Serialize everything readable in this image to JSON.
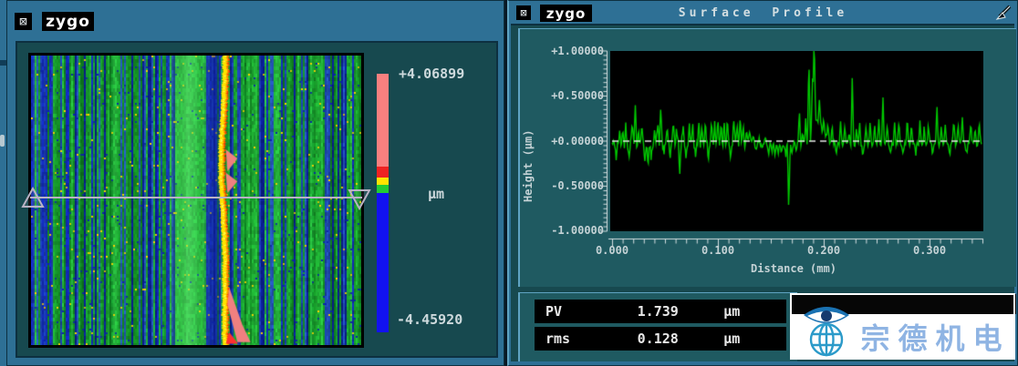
{
  "colors": {
    "titlebar": "#2e7095",
    "client": "#17494f",
    "panel": "#1f5a61",
    "ruler": "#d5dfe1",
    "trace_green": "#00c800",
    "zero_dash": "#e6e6e6",
    "profile_line": "#b9b2c4",
    "black": "#000000"
  },
  "left_window": {
    "close_glyph": "⊠",
    "logo": "zygo",
    "colorbar": {
      "max_label": "+4.06899",
      "min_label": "-4.45920",
      "unit": "μm",
      "segments": [
        {
          "color": "#f8807f",
          "to_pct": 36
        },
        {
          "color": "#ee2222",
          "to_pct": 40
        },
        {
          "color": "#ffe400",
          "to_pct": 43
        },
        {
          "color": "#22cc33",
          "to_pct": 46
        },
        {
          "color": "#1212f0",
          "to_pct": 100
        }
      ]
    },
    "map": {
      "seed": 7,
      "greens": [
        "#17a62b",
        "#23c53a",
        "#0f8f25",
        "#2ed648",
        "#1bb637"
      ],
      "blues": [
        "#1530d8",
        "#1f49c8",
        "#0b23a8",
        "#2a62d4"
      ],
      "ridge_x": 0.582,
      "ridge_colors": {
        "yellow": "#ffe400",
        "orange": "#ff9000",
        "red": "#ff3000"
      },
      "blob_color": "#f08080"
    }
  },
  "right_window": {
    "close_glyph": "⊠",
    "logo": "zygo",
    "title": "Surface Profile",
    "results": [
      {
        "label": "PV",
        "value": "1.739",
        "unit": "μm"
      },
      {
        "label": "rms",
        "value": "0.128",
        "unit": "μm"
      }
    ]
  },
  "chart_data": {
    "type": "line",
    "title": "Surface Profile",
    "xlabel": "Distance (mm)",
    "ylabel": "Height (μm)",
    "xlim": [
      0,
      0.353
    ],
    "ylim": [
      -1,
      1
    ],
    "x_tick_labels": [
      "0.000",
      "0.100",
      "0.200",
      "0.300"
    ],
    "y_tick_labels": [
      "+1.00000",
      "+0.50000",
      "+0.00000",
      "-0.50000",
      "-1.00000"
    ],
    "grid": false,
    "zero_line": "dashed",
    "legend": "none",
    "series": [
      {
        "name": "profile",
        "color": "#00c800",
        "baseline_um": -0.03,
        "noise_um_left": 0.05,
        "noise_um_right": 0.03,
        "seed": 42,
        "plateaus": [
          [
            0.189,
            0.198,
            0.35
          ],
          [
            0.198,
            0.205,
            0.12
          ]
        ],
        "peaks": [
          [
            0.004,
            -0.18
          ],
          [
            0.007,
            0.12
          ],
          [
            0.01,
            0.15
          ],
          [
            0.013,
            0.22
          ],
          [
            0.016,
            -0.12
          ],
          [
            0.019,
            0.3
          ],
          [
            0.022,
            0.46
          ],
          [
            0.025,
            0.15
          ],
          [
            0.028,
            0.22
          ],
          [
            0.031,
            -0.18
          ],
          [
            0.034,
            -0.3
          ],
          [
            0.037,
            -0.2
          ],
          [
            0.04,
            0.18
          ],
          [
            0.043,
            0.25
          ],
          [
            0.046,
            0.45
          ],
          [
            0.049,
            -0.14
          ],
          [
            0.052,
            0.2
          ],
          [
            0.055,
            -0.16
          ],
          [
            0.058,
            0.24
          ],
          [
            0.061,
            0.18
          ],
          [
            0.064,
            -0.34
          ],
          [
            0.067,
            0.22
          ],
          [
            0.07,
            -0.15
          ],
          [
            0.073,
            0.2
          ],
          [
            0.076,
            0.24
          ],
          [
            0.079,
            -0.18
          ],
          [
            0.082,
            0.26
          ],
          [
            0.085,
            0.2
          ],
          [
            0.088,
            0.25
          ],
          [
            0.091,
            -0.16
          ],
          [
            0.094,
            0.27
          ],
          [
            0.097,
            0.22
          ],
          [
            0.1,
            0.28
          ],
          [
            0.103,
            0.24
          ],
          [
            0.106,
            0.26
          ],
          [
            0.109,
            0.31
          ],
          [
            0.112,
            -0.22
          ],
          [
            0.115,
            0.27
          ],
          [
            0.118,
            0.24
          ],
          [
            0.121,
            0.28
          ],
          [
            0.124,
            0.18
          ],
          [
            0.127,
            0.15
          ],
          [
            0.13,
            0.12
          ],
          [
            0.133,
            0.1
          ],
          [
            0.136,
            -0.1
          ],
          [
            0.139,
            0.08
          ],
          [
            0.142,
            -0.08
          ],
          [
            0.145,
            0.1
          ],
          [
            0.148,
            -0.12
          ],
          [
            0.151,
            -0.1
          ],
          [
            0.154,
            -0.14
          ],
          [
            0.157,
            -0.1
          ],
          [
            0.16,
            -0.12
          ],
          [
            0.164,
            -0.15
          ],
          [
            0.167,
            -0.78
          ],
          [
            0.17,
            -0.12
          ],
          [
            0.174,
            -0.1
          ],
          [
            0.177,
            0.42
          ],
          [
            0.18,
            0.12
          ],
          [
            0.183,
            0.3
          ],
          [
            0.186,
            1.02
          ],
          [
            0.189,
            0.55
          ],
          [
            0.191,
            0.92
          ],
          [
            0.196,
            0.3
          ],
          [
            0.2,
            0.18
          ],
          [
            0.204,
            0.15
          ],
          [
            0.208,
            0.2
          ],
          [
            0.212,
            -0.12
          ],
          [
            0.216,
            0.24
          ],
          [
            0.22,
            0.2
          ],
          [
            0.224,
            0.16
          ],
          [
            0.227,
            0.76
          ],
          [
            0.231,
            0.18
          ],
          [
            0.234,
            0.22
          ],
          [
            0.237,
            -0.14
          ],
          [
            0.24,
            0.2
          ],
          [
            0.244,
            0.26
          ],
          [
            0.248,
            0.22
          ],
          [
            0.252,
            0.3
          ],
          [
            0.256,
            0.56
          ],
          [
            0.26,
            0.2
          ],
          [
            0.263,
            -0.12
          ],
          [
            0.267,
            0.24
          ],
          [
            0.271,
            0.26
          ],
          [
            0.275,
            -0.14
          ],
          [
            0.279,
            0.3
          ],
          [
            0.283,
            0.22
          ],
          [
            0.287,
            -0.12
          ],
          [
            0.291,
            0.26
          ],
          [
            0.295,
            0.2
          ],
          [
            0.299,
            0.24
          ],
          [
            0.303,
            -0.12
          ],
          [
            0.307,
            0.45
          ],
          [
            0.311,
            0.2
          ],
          [
            0.315,
            0.24
          ],
          [
            0.319,
            -0.14
          ],
          [
            0.323,
            0.3
          ],
          [
            0.327,
            0.22
          ],
          [
            0.331,
            0.28
          ],
          [
            0.335,
            -0.12
          ],
          [
            0.339,
            0.24
          ],
          [
            0.343,
            0.2
          ],
          [
            0.347,
            0.26
          ],
          [
            0.351,
            -0.15
          ]
        ]
      }
    ]
  },
  "watermark": {
    "text": "宗德机电",
    "text_color": "#8fb4e3",
    "icon": "eye-globe-logo"
  }
}
